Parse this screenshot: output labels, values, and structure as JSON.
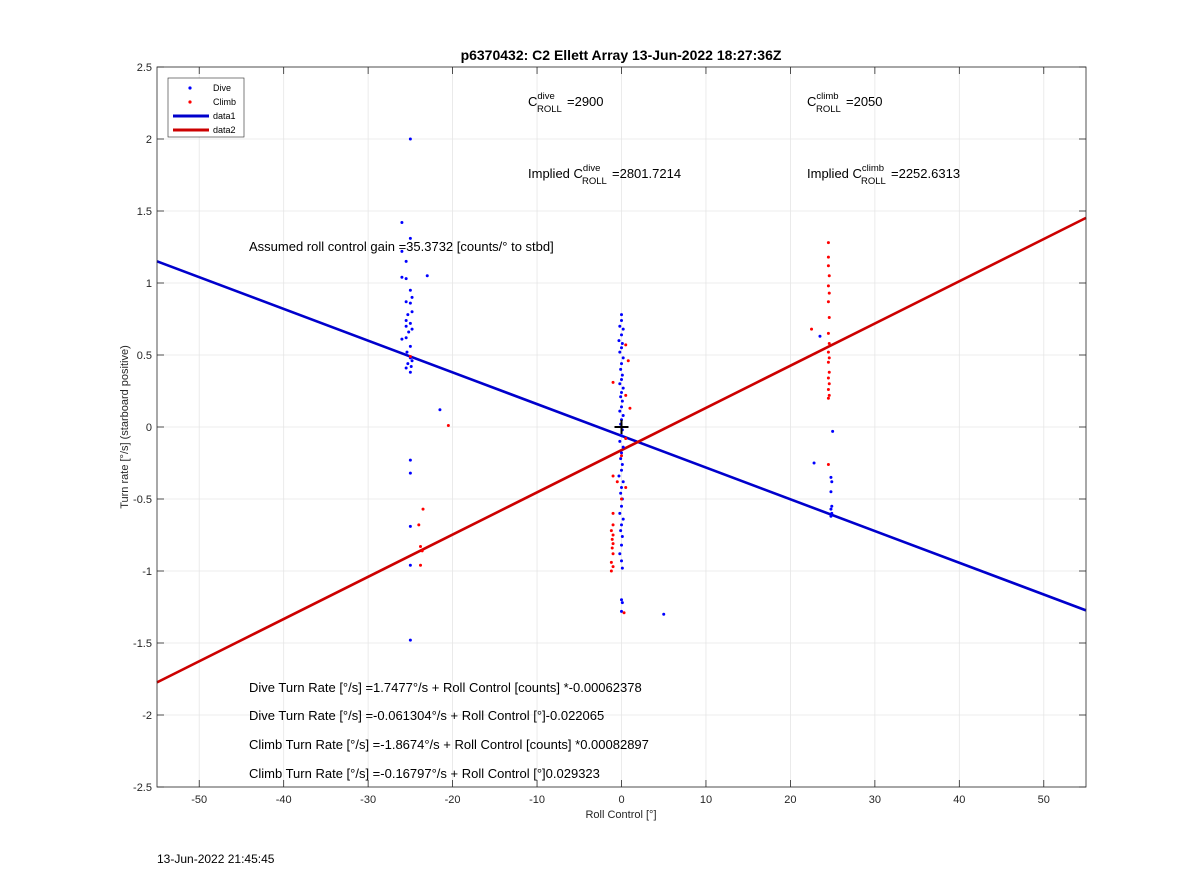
{
  "chart_data": {
    "type": "scatter",
    "title": "p6370432: C2 Ellett Array 13-Jun-2022 18:27:36Z",
    "xlabel": "Roll Control [°]",
    "ylabel": "Turn rate [°/s] (starboard positive)",
    "xlim": [
      -55,
      55
    ],
    "ylim": [
      -2.5,
      2.5
    ],
    "xticks": [
      -50,
      -40,
      -30,
      -20,
      -10,
      0,
      10,
      20,
      30,
      40,
      50
    ],
    "yticks": [
      -2.5,
      -2,
      -1.5,
      -1,
      -0.5,
      0,
      0.5,
      1,
      1.5,
      2,
      2.5
    ],
    "xtick_labels": [
      "-50",
      "-40",
      "-30",
      "-20",
      "-10",
      "0",
      "10",
      "20",
      "30",
      "40",
      "50"
    ],
    "ytick_labels": [
      "-2.5",
      "-2",
      "-1.5",
      "-1",
      "-0.5",
      "0",
      "0.5",
      "1",
      "1.5",
      "2",
      "2.5"
    ],
    "grid": true,
    "legend_position": "top-left",
    "colors": {
      "dive": "#0000ff",
      "climb": "#ff0000",
      "data1": "#0000cc",
      "data2": "#cc0000",
      "center": "#000000"
    },
    "series": [
      {
        "name": "Dive",
        "kind": "points",
        "points": [
          [
            -25,
            2.0
          ],
          [
            -26,
            1.42
          ],
          [
            -25,
            1.31
          ],
          [
            -26,
            1.22
          ],
          [
            -25.5,
            1.15
          ],
          [
            -23,
            1.05
          ],
          [
            -26,
            1.04
          ],
          [
            -25.5,
            1.03
          ],
          [
            -25,
            0.95
          ],
          [
            -24.8,
            0.9
          ],
          [
            -25.5,
            0.87
          ],
          [
            -25,
            0.86
          ],
          [
            -24.8,
            0.8
          ],
          [
            -25.3,
            0.78
          ],
          [
            -25.5,
            0.74
          ],
          [
            -25,
            0.72
          ],
          [
            -25.5,
            0.7
          ],
          [
            -24.8,
            0.68
          ],
          [
            -25.2,
            0.66
          ],
          [
            -25.5,
            0.62
          ],
          [
            -26,
            0.61
          ],
          [
            -25,
            0.56
          ],
          [
            -25.4,
            0.52
          ],
          [
            -25,
            0.48
          ],
          [
            -24.8,
            0.46
          ],
          [
            -25.3,
            0.44
          ],
          [
            -24.9,
            0.42
          ],
          [
            -25.5,
            0.41
          ],
          [
            -25,
            0.38
          ],
          [
            -21.5,
            0.12
          ],
          [
            -25,
            -0.23
          ],
          [
            -25,
            -0.32
          ],
          [
            -25,
            -0.69
          ],
          [
            -25,
            -0.96
          ],
          [
            -25,
            -1.48
          ],
          [
            0,
            0.78
          ],
          [
            0,
            0.74
          ],
          [
            -0.2,
            0.7
          ],
          [
            0.2,
            0.68
          ],
          [
            0,
            0.64
          ],
          [
            -0.3,
            0.6
          ],
          [
            0.1,
            0.58
          ],
          [
            0,
            0.55
          ],
          [
            -0.2,
            0.52
          ],
          [
            0.2,
            0.48
          ],
          [
            0,
            0.44
          ],
          [
            -0.1,
            0.4
          ],
          [
            0.1,
            0.36
          ],
          [
            0,
            0.33
          ],
          [
            -0.2,
            0.3
          ],
          [
            0.2,
            0.27
          ],
          [
            0,
            0.24
          ],
          [
            -0.1,
            0.21
          ],
          [
            0.1,
            0.18
          ],
          [
            0,
            0.14
          ],
          [
            -0.2,
            0.11
          ],
          [
            0.2,
            0.08
          ],
          [
            0,
            0.05
          ],
          [
            -0.1,
            0.02
          ],
          [
            0.1,
            -0.02
          ],
          [
            0,
            -0.06
          ],
          [
            -0.2,
            -0.1
          ],
          [
            0.2,
            -0.14
          ],
          [
            0,
            -0.18
          ],
          [
            -0.1,
            -0.22
          ],
          [
            0.1,
            -0.26
          ],
          [
            0,
            -0.3
          ],
          [
            -0.3,
            -0.34
          ],
          [
            0.2,
            -0.38
          ],
          [
            0,
            -0.42
          ],
          [
            -0.1,
            -0.46
          ],
          [
            0.1,
            -0.5
          ],
          [
            0,
            -0.55
          ],
          [
            -0.2,
            -0.6
          ],
          [
            0.2,
            -0.64
          ],
          [
            0,
            -0.68
          ],
          [
            -0.1,
            -0.72
          ],
          [
            0.1,
            -0.76
          ],
          [
            0,
            -0.82
          ],
          [
            -0.2,
            -0.88
          ],
          [
            0,
            -0.93
          ],
          [
            0.1,
            -0.98
          ],
          [
            0,
            -1.2
          ],
          [
            0.1,
            -1.22
          ],
          [
            0,
            -1.28
          ],
          [
            5,
            -1.3
          ],
          [
            25,
            -0.03
          ],
          [
            22.8,
            -0.25
          ],
          [
            24.8,
            -0.35
          ],
          [
            24.9,
            -0.38
          ],
          [
            24.8,
            -0.45
          ],
          [
            24.9,
            -0.55
          ],
          [
            24.8,
            -0.57
          ],
          [
            24.9,
            -0.6
          ],
          [
            24.8,
            -0.62
          ],
          [
            23.5,
            0.63
          ]
        ]
      },
      {
        "name": "Climb",
        "kind": "points",
        "points": [
          [
            -20.5,
            0.01
          ],
          [
            -25,
            0.49
          ],
          [
            -23.5,
            -0.57
          ],
          [
            -24,
            -0.68
          ],
          [
            -23.8,
            -0.83
          ],
          [
            -23.6,
            -0.86
          ],
          [
            -23.8,
            -0.96
          ],
          [
            0.5,
            0.57
          ],
          [
            0.8,
            0.46
          ],
          [
            -1,
            0.31
          ],
          [
            0.5,
            0.22
          ],
          [
            1,
            0.13
          ],
          [
            0.5,
            -0.08
          ],
          [
            0,
            -0.2
          ],
          [
            -1,
            -0.34
          ],
          [
            -0.5,
            -0.38
          ],
          [
            0.5,
            -0.42
          ],
          [
            -1,
            -0.6
          ],
          [
            -1,
            -0.68
          ],
          [
            -1.2,
            -0.72
          ],
          [
            -1,
            -0.75
          ],
          [
            -1.1,
            -0.78
          ],
          [
            -1,
            -0.81
          ],
          [
            -1.1,
            -0.84
          ],
          [
            -1,
            -0.88
          ],
          [
            -1.2,
            -0.94
          ],
          [
            -1,
            -0.97
          ],
          [
            -1.2,
            -1.0
          ],
          [
            0,
            -0.5
          ],
          [
            0.3,
            -1.29
          ],
          [
            24.5,
            1.28
          ],
          [
            24.5,
            1.18
          ],
          [
            24.5,
            1.12
          ],
          [
            24.6,
            1.05
          ],
          [
            24.5,
            0.98
          ],
          [
            24.6,
            0.93
          ],
          [
            24.5,
            0.87
          ],
          [
            24.6,
            0.76
          ],
          [
            24.5,
            0.65
          ],
          [
            24.6,
            0.58
          ],
          [
            24.5,
            0.52
          ],
          [
            24.6,
            0.48
          ],
          [
            24.5,
            0.45
          ],
          [
            24.6,
            0.38
          ],
          [
            24.5,
            0.34
          ],
          [
            24.6,
            0.3
          ],
          [
            24.5,
            0.26
          ],
          [
            24.6,
            0.22
          ],
          [
            24.5,
            0.2
          ],
          [
            22.5,
            0.68
          ],
          [
            24.5,
            -0.26
          ]
        ]
      },
      {
        "name": "data1",
        "kind": "line",
        "x": [
          -55,
          55
        ],
        "y": [
          1.1506,
          -1.2733
        ]
      },
      {
        "name": "data2",
        "kind": "line",
        "x": [
          -55,
          55
        ],
        "y": [
          -1.7734,
          1.4521
        ]
      },
      {
        "name": "center",
        "kind": "marker",
        "x": 0,
        "y": 0
      }
    ],
    "legend": [
      {
        "label": "Dive",
        "style": "point",
        "color_key": "dive"
      },
      {
        "label": "Climb",
        "style": "point",
        "color_key": "climb"
      },
      {
        "label": "data1",
        "style": "line",
        "color_key": "data1"
      },
      {
        "label": "data2",
        "style": "line",
        "color_key": "data2"
      }
    ],
    "annotations": {
      "c_dive": {
        "base": "C",
        "sup": "dive",
        "sub": "ROLL",
        "value": "=2900"
      },
      "c_climb": {
        "base": "C",
        "sup": "climb",
        "sub": "ROLL",
        "value": "=2050"
      },
      "implied_dive": {
        "prefix": "Implied C",
        "sup": "dive",
        "sub": "ROLL",
        "value": "=2801.7214"
      },
      "implied_climb": {
        "prefix": "Implied C",
        "sup": "climb",
        "sub": "ROLL",
        "value": "=2252.6313"
      },
      "gain": "Assumed roll control gain =35.3732 [counts/° to stbd]",
      "eq1": "Dive Turn Rate [°/s] =1.7477°/s + Roll Control [counts] *-0.00062378",
      "eq2": "Dive Turn Rate [°/s] =-0.061304°/s + Roll Control [°]-0.022065",
      "eq3": "Climb Turn Rate [°/s] =-1.8674°/s + Roll Control [counts] *0.00082897",
      "eq4": "Climb Turn Rate [°/s] =-0.16797°/s + Roll Control [°]0.029323"
    }
  },
  "footer": {
    "timestamp": "13-Jun-2022 21:45:45"
  }
}
